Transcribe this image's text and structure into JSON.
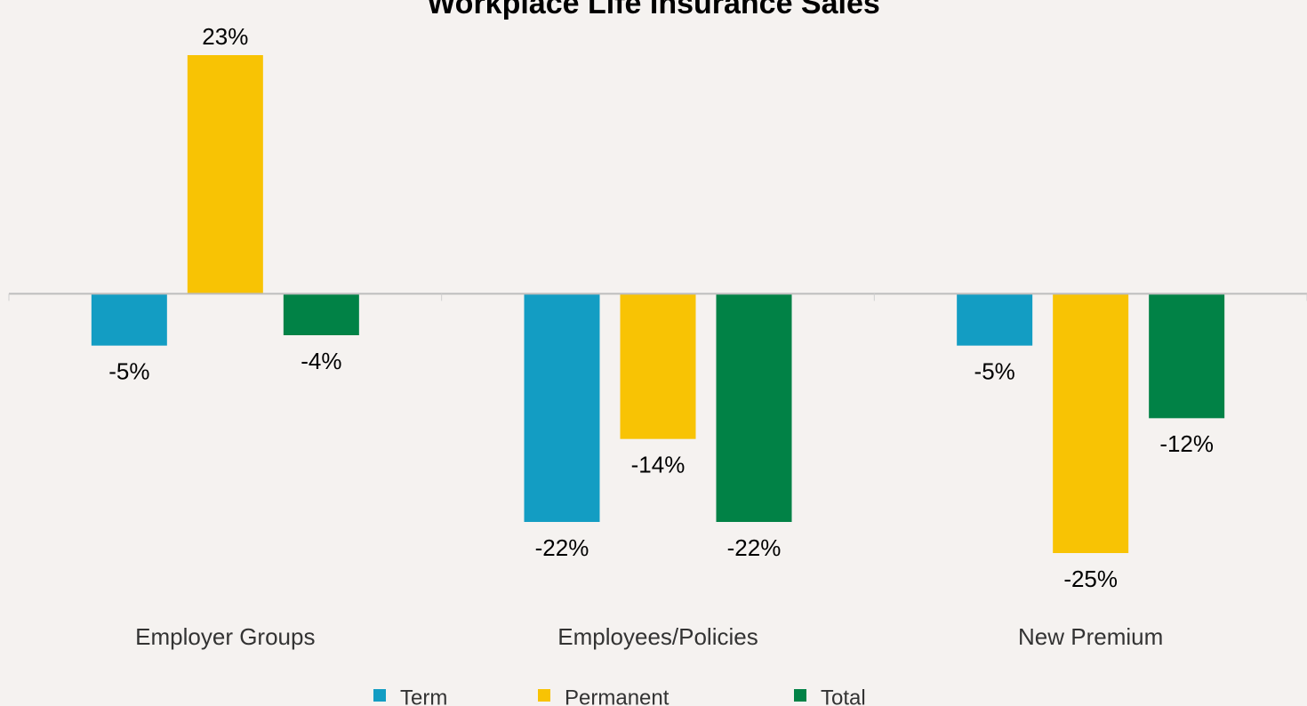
{
  "chart_data": {
    "type": "bar",
    "title": "Workplace Life Insurance Sales",
    "categories": [
      "Employer Groups",
      "Employees/Policies",
      "New Premium"
    ],
    "series": [
      {
        "name": "Term",
        "color": "#139dc3",
        "values": [
          -5,
          -22,
          -5
        ],
        "value_labels": [
          "-5%",
          "-22%",
          "-5%"
        ]
      },
      {
        "name": "Permanent",
        "color": "#f8c304",
        "values": [
          23,
          -14,
          -25
        ],
        "value_labels": [
          "23%",
          "-14%",
          "-25%"
        ]
      },
      {
        "name": "Total",
        "color": "#018246",
        "values": [
          -4,
          -22,
          -12
        ],
        "value_labels": [
          "-4%",
          "-22%",
          "-12%"
        ]
      }
    ],
    "legend": "bottom"
  }
}
